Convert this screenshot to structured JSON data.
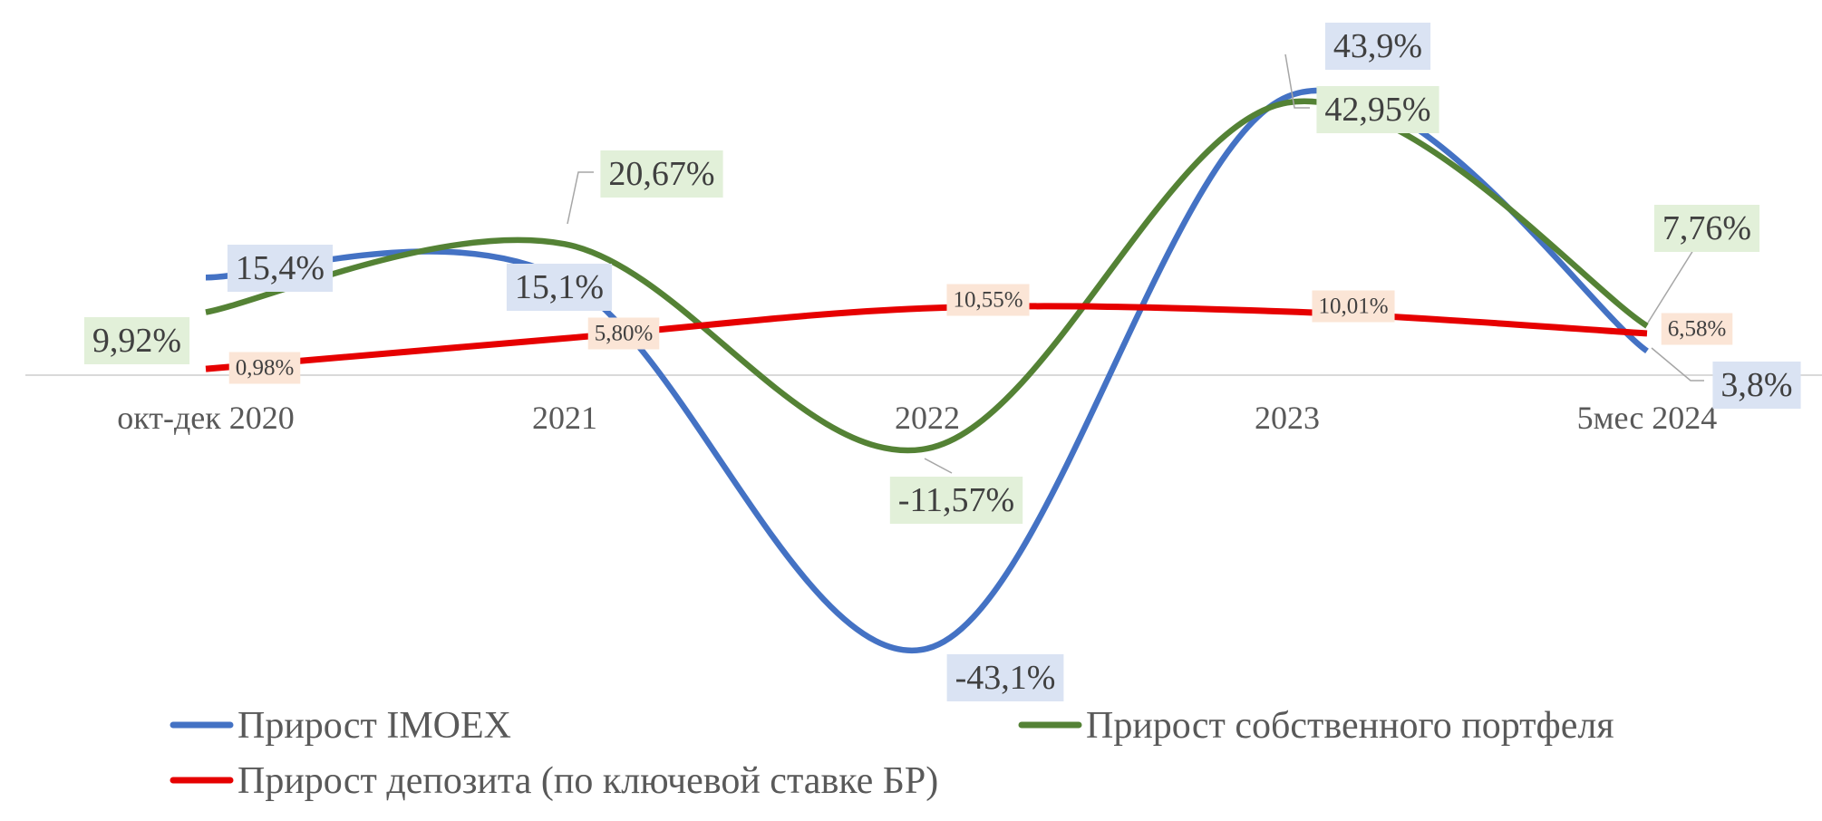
{
  "chart_data": {
    "type": "line",
    "title": "",
    "xlabel": "",
    "ylabel": "",
    "categories": [
      "окт-дек 2020",
      "2021",
      "2022",
      "2023",
      "5мес 2024"
    ],
    "series": [
      {
        "name": "Прирост IMOEX",
        "color": "#4472C4",
        "values": [
          15.4,
          15.1,
          -43.1,
          43.9,
          3.8
        ],
        "labels": [
          "15,4%",
          "15,1%",
          "-43,1%",
          "43,9%",
          "3,8%"
        ]
      },
      {
        "name": "Прирост собственного портфеля",
        "color": "#548235",
        "values": [
          9.92,
          20.67,
          -11.57,
          42.95,
          7.76
        ],
        "labels": [
          "9,92%",
          "20,67%",
          "-11,57%",
          "42,95%",
          "7,76%"
        ]
      },
      {
        "name": "Прирост депозита (по ключевой ставке БР)",
        "color": "#E60000",
        "values": [
          0.98,
          5.8,
          10.55,
          10.01,
          6.58
        ],
        "labels": [
          "0,98%",
          "5,80%",
          "10,55%",
          "10,01%",
          "6,58%"
        ]
      }
    ],
    "grid": false,
    "axis_line": true,
    "smooth": true,
    "legend": "bottom"
  }
}
